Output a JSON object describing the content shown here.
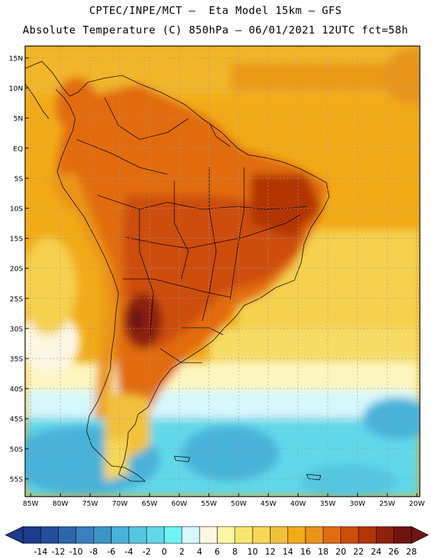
{
  "header": {
    "line1": "CPTEC/INPE/MCT –  Eta Model 15km – GFS",
    "line2": "Absolute Temperature (C) 850hPa – 06/01/2021 12UTC fct=58h"
  },
  "map": {
    "region": "South America",
    "variable": "Absolute Temperature (C) 850hPa",
    "lat_labels": [
      "15N",
      "10N",
      "5N",
      "EQ",
      "5S",
      "10S",
      "15S",
      "20S",
      "25S",
      "30S",
      "35S",
      "40S",
      "45S",
      "50S",
      "55S"
    ],
    "lon_labels": [
      "85W",
      "80W",
      "75W",
      "70W",
      "65W",
      "60W",
      "55W",
      "50W",
      "45W",
      "40W",
      "35W",
      "30W",
      "25W",
      "20W"
    ]
  },
  "legend": {
    "labels": [
      "-14",
      "-12",
      "-10",
      "-8",
      "-6",
      "-4",
      "-2",
      "0",
      "2",
      "4",
      "6",
      "8",
      "10",
      "12",
      "14",
      "16",
      "18",
      "20",
      "22",
      "24",
      "26",
      "28"
    ],
    "colors": [
      "#1c3b8c",
      "#244e9c",
      "#2e66ae",
      "#3a80be",
      "#3c95c7",
      "#48b2d9",
      "#55c6e1",
      "#61d8ea",
      "#6ff4f5",
      "#d6f7fb",
      "#fdf6e2",
      "#fdf7a4",
      "#f7e76e",
      "#f6d755",
      "#f2c13a",
      "#f2ab18",
      "#eb9515",
      "#e26c10",
      "#cd4d0b",
      "#b23606",
      "#8f220a",
      "#701312"
    ]
  }
}
